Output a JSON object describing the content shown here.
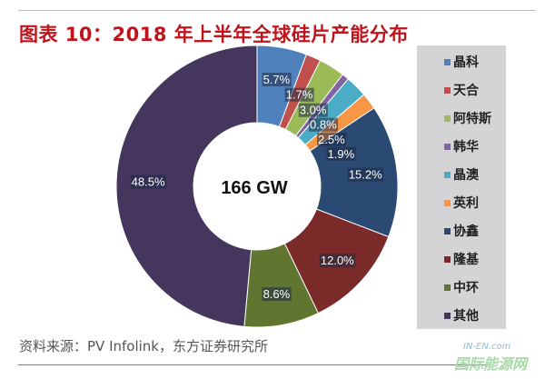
{
  "title": "图表 10：2018 年上半年全球硅片产能分布",
  "source": "资料来源：PV Infolink，东方证券研究所",
  "watermark": {
    "en": "IN-EN.com",
    "cn": "国际能源网"
  },
  "chart_data": {
    "type": "pie",
    "donut": true,
    "center_label": "166 GW",
    "legend_position": "right",
    "categories": [
      "晶科",
      "天合",
      "阿特斯",
      "韩华",
      "晶澳",
      "英利",
      "协鑫",
      "隆基",
      "中环",
      "其他"
    ],
    "values": [
      5.7,
      1.7,
      3.0,
      0.8,
      2.5,
      1.9,
      15.2,
      12.0,
      8.6,
      48.5
    ],
    "labels": [
      "5.7%",
      "1.7%",
      "3.0%",
      "0.8%",
      "2.5%",
      "1.9%",
      "15.2%",
      "12.0%",
      "8.6%",
      "48.5%"
    ],
    "colors": [
      "#4f81bd",
      "#c0504d",
      "#9bbb59",
      "#8064a2",
      "#4bacc6",
      "#f79646",
      "#2a4a74",
      "#7a2a28",
      "#5f7530",
      "#45365e"
    ]
  }
}
